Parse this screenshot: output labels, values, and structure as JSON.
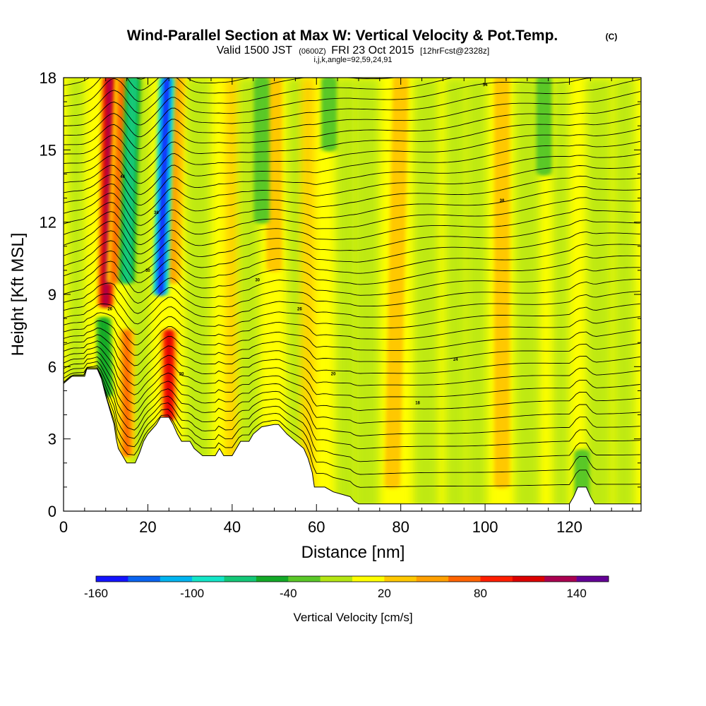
{
  "chart_data": {
    "type": "heatmap",
    "title": "Wind-Parallel Section at Max W: Vertical Velocity & Pot.Temp.",
    "title_mark": "(C)",
    "subtitle": {
      "valid": "Valid 1500 JST",
      "utc": "(0600Z)",
      "date": "FRI 23 Oct 2015",
      "fcst": "[12hrFcst@2328z]"
    },
    "subtitle2": "i,j,k,angle=92,59,24,91",
    "xlabel": "Distance [nm]",
    "ylabel": "Height [Kft MSL]",
    "xlim": [
      0,
      137
    ],
    "ylim": [
      0,
      18
    ],
    "xticks": [
      0,
      20,
      40,
      60,
      80,
      100,
      120
    ],
    "yticks": [
      0,
      3,
      6,
      9,
      12,
      15,
      18
    ],
    "colorbar": {
      "label": "Vertical Velocity [cm/s]",
      "range": [
        -160,
        160
      ],
      "ticks": [
        -160,
        -100,
        -40,
        20,
        80,
        140
      ],
      "colors": [
        "#1414ff",
        "#0a64f0",
        "#00b4f0",
        "#14e6c8",
        "#14c878",
        "#14aa28",
        "#5ac828",
        "#b4e614",
        "#ffff00",
        "#ffc800",
        "#ffa000",
        "#ff6400",
        "#ff1e00",
        "#dc0000",
        "#aa0050",
        "#640096"
      ]
    },
    "terrain": [
      [
        0,
        5.3
      ],
      [
        2,
        5.6
      ],
      [
        5,
        5.6
      ],
      [
        5.5,
        5.9
      ],
      [
        8,
        5.9
      ],
      [
        9,
        5.5
      ],
      [
        10,
        4.8
      ],
      [
        11,
        4.2
      ],
      [
        12,
        3.6
      ],
      [
        12.5,
        3.0
      ],
      [
        13,
        2.6
      ],
      [
        14,
        2.3
      ],
      [
        15,
        2.0
      ],
      [
        17,
        2.0
      ],
      [
        18,
        2.4
      ],
      [
        19,
        2.9
      ],
      [
        20,
        3.2
      ],
      [
        21,
        3.4
      ],
      [
        22,
        3.6
      ],
      [
        23,
        3.9
      ],
      [
        25,
        3.9
      ],
      [
        26,
        3.6
      ],
      [
        27,
        3.2
      ],
      [
        28,
        2.9
      ],
      [
        30,
        2.9
      ],
      [
        31,
        2.6
      ],
      [
        33,
        2.3
      ],
      [
        36,
        2.3
      ],
      [
        37,
        2.6
      ],
      [
        38,
        2.3
      ],
      [
        40,
        2.3
      ],
      [
        41,
        2.6
      ],
      [
        42,
        2.9
      ],
      [
        44,
        2.9
      ],
      [
        45,
        3.2
      ],
      [
        47,
        3.5
      ],
      [
        50,
        3.6
      ],
      [
        51,
        3.6
      ],
      [
        53,
        3.2
      ],
      [
        55,
        2.9
      ],
      [
        57,
        2.6
      ],
      [
        58,
        2.2
      ],
      [
        59,
        1.6
      ],
      [
        59.5,
        1.0
      ],
      [
        60,
        1.0
      ],
      [
        62,
        1.0
      ],
      [
        64,
        0.8
      ],
      [
        66,
        0.7
      ],
      [
        68,
        0.6
      ],
      [
        69,
        0.4
      ],
      [
        70,
        0.3
      ],
      [
        82,
        0.3
      ],
      [
        90,
        0.3
      ],
      [
        102,
        0.3
      ],
      [
        114,
        0.3
      ],
      [
        120,
        0.3
      ],
      [
        121,
        0.6
      ],
      [
        122,
        1.0
      ],
      [
        124,
        1.0
      ],
      [
        125,
        0.6
      ],
      [
        126,
        0.3
      ],
      [
        137,
        0.3
      ]
    ],
    "updraft_bands": [
      {
        "x_top": 11,
        "x_bottom": 10,
        "y_top": 18,
        "y_bottom": 8.5,
        "value": 130
      },
      {
        "x_top": 14,
        "x_bottom": 12,
        "y_top": 18,
        "y_bottom": 9.5,
        "value": 70
      },
      {
        "x_top": 27,
        "x_bottom": 26,
        "y_top": 18,
        "y_bottom": 9.5,
        "value": 40
      },
      {
        "x_top": 25,
        "x_bottom": 25,
        "y_top": 7.5,
        "y_bottom": 3.8,
        "value": 100
      },
      {
        "x_top": 15,
        "x_bottom": 15,
        "y_top": 7.5,
        "y_bottom": 2.3,
        "value": 60
      },
      {
        "x_top": 50,
        "x_bottom": 50,
        "y_top": 18,
        "y_bottom": 10,
        "value": 30
      },
      {
        "x_top": 80,
        "x_bottom": 78,
        "y_top": 18,
        "y_bottom": 1,
        "value": 25
      },
      {
        "x_top": 104,
        "x_bottom": 104,
        "y_top": 18,
        "y_bottom": 1,
        "value": 25
      }
    ],
    "downdraft_bands": [
      {
        "x_top": 16.5,
        "x_bottom": 15,
        "y_top": 18,
        "y_bottom": 9.5,
        "value": -80
      },
      {
        "x_top": 24.5,
        "x_bottom": 23,
        "y_top": 18,
        "y_bottom": 9.0,
        "value": -150
      },
      {
        "x_top": 9.5,
        "x_bottom": 10,
        "y_top": 8.0,
        "y_bottom": 4.8,
        "value": -60
      },
      {
        "x_top": 47,
        "x_bottom": 47,
        "y_top": 18,
        "y_bottom": 12,
        "value": -40
      },
      {
        "x_top": 63,
        "x_bottom": 63,
        "y_top": 18,
        "y_bottom": 15,
        "value": -40
      },
      {
        "x_top": 114,
        "x_bottom": 114,
        "y_top": 18,
        "y_bottom": 14,
        "value": -40
      },
      {
        "x_top": 123,
        "x_bottom": 123,
        "y_top": 2.5,
        "y_bottom": 0.5,
        "value": -40
      }
    ],
    "contour_labels": [
      {
        "x": 14,
        "y": 13.9,
        "text": "46"
      },
      {
        "x": 22,
        "y": 12.4,
        "text": "38"
      },
      {
        "x": 20,
        "y": 10.0,
        "text": "30"
      },
      {
        "x": 11,
        "y": 8.4,
        "text": "26"
      },
      {
        "x": 28,
        "y": 5.7,
        "text": "20"
      },
      {
        "x": 46,
        "y": 9.6,
        "text": "30"
      },
      {
        "x": 56,
        "y": 8.4,
        "text": "26"
      },
      {
        "x": 64,
        "y": 5.7,
        "text": "20"
      },
      {
        "x": 84,
        "y": 4.5,
        "text": "18"
      },
      {
        "x": 93,
        "y": 6.3,
        "text": "24"
      },
      {
        "x": 104,
        "y": 12.9,
        "text": "38"
      },
      {
        "x": 100,
        "y": 17.7,
        "text": "54"
      }
    ]
  }
}
